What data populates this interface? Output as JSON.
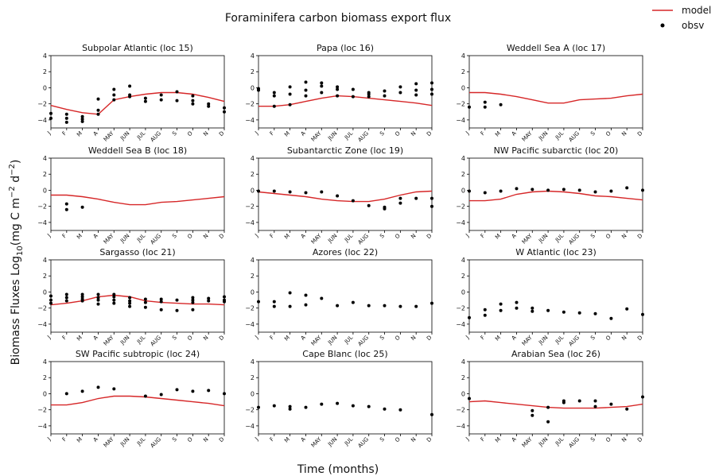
{
  "figure": {
    "title": "Foraminifera carbon biomass export flux",
    "xlabel": "Time (months)",
    "ylabel_main": "Biomass Fluxes Log",
    "ylabel_sub": "10",
    "ylabel_unit_open": "(mg C m",
    "ylabel_exp1": "−2",
    "ylabel_mid": " d",
    "ylabel_exp2": "−2",
    "ylabel_close": ")",
    "legend": {
      "model_label": "model",
      "obs_label": "obsv",
      "placement": "top-right"
    },
    "colors": {
      "model": "#d62728",
      "obs": "#000000"
    }
  },
  "chart_data": [
    {
      "type": "line",
      "title": "Subpolar Atlantic (loc 15)",
      "ylim": [
        -5,
        4
      ],
      "x_ticks": [
        "J",
        "F",
        "M",
        "A",
        "MAY",
        "JUN",
        "JUL",
        "AUG",
        "S",
        "O",
        "N",
        "D"
      ],
      "y_ticks": [
        "4",
        "2",
        "0",
        "−2",
        "−4"
      ],
      "model": [
        -2.2,
        -2.7,
        -3.1,
        -3.3,
        -1.5,
        -1.1,
        -0.8,
        -0.6,
        -0.6,
        -0.8,
        -1.2,
        -1.7
      ],
      "obs": [
        [
          1,
          -3.2
        ],
        [
          1,
          -3.8
        ],
        [
          2,
          -3.3
        ],
        [
          2,
          -3.8
        ],
        [
          2,
          -4.3
        ],
        [
          3,
          -3.6
        ],
        [
          3,
          -3.9
        ],
        [
          3,
          -4.2
        ],
        [
          4,
          -1.4
        ],
        [
          4,
          -2.8
        ],
        [
          4,
          -3.3
        ],
        [
          5,
          -0.2
        ],
        [
          5,
          -0.9
        ],
        [
          5,
          -1.5
        ],
        [
          6,
          0.2
        ],
        [
          6,
          -0.9
        ],
        [
          6,
          -1.1
        ],
        [
          7,
          -1.3
        ],
        [
          7,
          -1.7
        ],
        [
          8,
          -0.9
        ],
        [
          8,
          -1.5
        ],
        [
          9,
          -0.5
        ],
        [
          9,
          -1.6
        ],
        [
          10,
          -1.0
        ],
        [
          10,
          -1.6
        ],
        [
          10,
          -2.0
        ],
        [
          11,
          -2.0
        ],
        [
          11,
          -2.3
        ],
        [
          12,
          -2.5
        ],
        [
          12,
          -3.0
        ]
      ]
    },
    {
      "type": "line",
      "title": "Papa (loc 16)",
      "ylim": [
        -5,
        4
      ],
      "x_ticks": [
        "J",
        "F",
        "M",
        "A",
        "MAY",
        "JUN",
        "JUL",
        "AUG",
        "S",
        "O",
        "N",
        "D"
      ],
      "y_ticks": [
        "4",
        "2",
        "0",
        "−2",
        "−4"
      ],
      "model": [
        -2.3,
        -2.3,
        -2.1,
        -1.7,
        -1.3,
        -1.0,
        -1.1,
        -1.3,
        -1.5,
        -1.7,
        -1.9,
        -2.2
      ],
      "obs": [
        [
          1,
          -0.1
        ],
        [
          1,
          -0.3
        ],
        [
          2,
          -0.6
        ],
        [
          2,
          -1.0
        ],
        [
          2,
          -2.3
        ],
        [
          3,
          0.1
        ],
        [
          3,
          -0.8
        ],
        [
          3,
          -2.1
        ],
        [
          4,
          0.7
        ],
        [
          4,
          -0.3
        ],
        [
          4,
          -1.0
        ],
        [
          5,
          0.6
        ],
        [
          5,
          0.2
        ],
        [
          5,
          -0.6
        ],
        [
          6,
          0.1
        ],
        [
          6,
          -0.2
        ],
        [
          6,
          -1.0
        ],
        [
          7,
          -0.2
        ],
        [
          7,
          -1.1
        ],
        [
          8,
          -0.6
        ],
        [
          8,
          -0.8
        ],
        [
          8,
          -1.1
        ],
        [
          9,
          -0.4
        ],
        [
          9,
          -1.0
        ],
        [
          10,
          0.1
        ],
        [
          10,
          -0.6
        ],
        [
          11,
          0.5
        ],
        [
          11,
          -0.3
        ],
        [
          11,
          -0.9
        ],
        [
          12,
          0.6
        ],
        [
          12,
          -0.2
        ],
        [
          12,
          -0.8
        ]
      ]
    },
    {
      "type": "line",
      "title": "Weddell Sea A (loc 17)",
      "ylim": [
        -5,
        4
      ],
      "x_ticks": [
        "J",
        "F",
        "M",
        "A",
        "MAY",
        "JUN",
        "JUL",
        "AUG",
        "S",
        "O",
        "N",
        "D"
      ],
      "y_ticks": [
        "4",
        "2",
        "0",
        "−2",
        "−4"
      ],
      "model": [
        -0.6,
        -0.6,
        -0.8,
        -1.1,
        -1.5,
        -1.9,
        -1.9,
        -1.5,
        -1.4,
        -1.3,
        -1.0,
        -0.8
      ],
      "obs": [
        [
          1,
          -2.4
        ],
        [
          2,
          -1.8
        ],
        [
          2,
          -2.4
        ],
        [
          3,
          -2.1
        ]
      ]
    },
    {
      "type": "line",
      "title": "Weddell Sea B (loc 18)",
      "ylim": [
        -5,
        4
      ],
      "x_ticks": [
        "J",
        "F",
        "M",
        "A",
        "MAY",
        "JUN",
        "JUL",
        "AUG",
        "S",
        "O",
        "N",
        "D"
      ],
      "y_ticks": [
        "4",
        "2",
        "0",
        "−2",
        "−4"
      ],
      "model": [
        -0.6,
        -0.6,
        -0.8,
        -1.1,
        -1.5,
        -1.8,
        -1.8,
        -1.5,
        -1.4,
        -1.2,
        -1.0,
        -0.8
      ],
      "obs": [
        [
          2,
          -1.7
        ],
        [
          2,
          -2.4
        ],
        [
          3,
          -2.1
        ]
      ]
    },
    {
      "type": "line",
      "title": "Subantarctic Zone (loc 19)",
      "ylim": [
        -5,
        4
      ],
      "x_ticks": [
        "J",
        "F",
        "M",
        "A",
        "MAY",
        "JUN",
        "JUL",
        "AUG",
        "S",
        "O",
        "N",
        "D"
      ],
      "y_ticks": [
        "4",
        "2",
        "0",
        "−2",
        "−4"
      ],
      "model": [
        -0.2,
        -0.4,
        -0.6,
        -0.8,
        -1.1,
        -1.3,
        -1.4,
        -1.4,
        -1.1,
        -0.6,
        -0.2,
        -0.1
      ],
      "obs": [
        [
          1,
          -0.1
        ],
        [
          2,
          -0.1
        ],
        [
          3,
          -0.2
        ],
        [
          4,
          -0.3
        ],
        [
          5,
          -0.2
        ],
        [
          6,
          -0.7
        ],
        [
          7,
          -1.3
        ],
        [
          8,
          -1.9
        ],
        [
          9,
          -2.1
        ],
        [
          9,
          -2.3
        ],
        [
          10,
          -1.0
        ],
        [
          10,
          -1.6
        ],
        [
          11,
          -1.0
        ],
        [
          12,
          -1.0
        ],
        [
          12,
          -2.0
        ]
      ]
    },
    {
      "type": "line",
      "title": "NW Pacific subarctic (loc 20)",
      "ylim": [
        -5,
        4
      ],
      "x_ticks": [
        "J",
        "F",
        "M",
        "A",
        "MAY",
        "JUN",
        "JUL",
        "AUG",
        "S",
        "O",
        "N",
        "D"
      ],
      "y_ticks": [
        "4",
        "2",
        "0",
        "−2",
        "−4"
      ],
      "model": [
        -1.3,
        -1.3,
        -1.1,
        -0.5,
        -0.2,
        -0.1,
        -0.2,
        -0.4,
        -0.7,
        -0.8,
        -1.0,
        -1.2
      ],
      "obs": [
        [
          1,
          -0.1
        ],
        [
          2,
          -0.3
        ],
        [
          3,
          -0.1
        ],
        [
          4,
          0.2
        ],
        [
          5,
          0.1
        ],
        [
          6,
          0.0
        ],
        [
          7,
          0.1
        ],
        [
          8,
          0.0
        ],
        [
          9,
          -0.2
        ],
        [
          10,
          -0.1
        ],
        [
          11,
          0.3
        ],
        [
          12,
          0.0
        ]
      ]
    },
    {
      "type": "line",
      "title": "Sargasso (loc 21)",
      "ylim": [
        -5,
        4
      ],
      "x_ticks": [
        "J",
        "F",
        "M",
        "A",
        "MAY",
        "JUN",
        "JUL",
        "AUG",
        "S",
        "O",
        "N",
        "D"
      ],
      "y_ticks": [
        "4",
        "2",
        "0",
        "−2",
        "−4"
      ],
      "model": [
        -1.6,
        -1.4,
        -1.1,
        -0.6,
        -0.4,
        -0.6,
        -1.1,
        -1.3,
        -1.4,
        -1.5,
        -1.5,
        -1.6
      ],
      "obs": [
        [
          1,
          -0.5
        ],
        [
          1,
          -1.0
        ],
        [
          1,
          -1.4
        ],
        [
          2,
          -0.3
        ],
        [
          2,
          -0.7
        ],
        [
          2,
          -1.1
        ],
        [
          3,
          -0.3
        ],
        [
          3,
          -0.6
        ],
        [
          3,
          -0.9
        ],
        [
          3,
          -1.1
        ],
        [
          4,
          -0.3
        ],
        [
          4,
          -0.7
        ],
        [
          4,
          -1.0
        ],
        [
          4,
          -1.5
        ],
        [
          5,
          -0.3
        ],
        [
          5,
          -0.6
        ],
        [
          5,
          -1.0
        ],
        [
          5,
          -1.4
        ],
        [
          6,
          -0.7
        ],
        [
          6,
          -1.1
        ],
        [
          6,
          -1.4
        ],
        [
          6,
          -1.8
        ],
        [
          7,
          -0.9
        ],
        [
          7,
          -1.3
        ],
        [
          7,
          -1.9
        ],
        [
          8,
          -0.9
        ],
        [
          8,
          -1.2
        ],
        [
          8,
          -2.2
        ],
        [
          9,
          -1.0
        ],
        [
          9,
          -2.3
        ],
        [
          10,
          -0.7
        ],
        [
          10,
          -1.0
        ],
        [
          10,
          -1.3
        ],
        [
          10,
          -2.2
        ],
        [
          11,
          -0.8
        ],
        [
          11,
          -1.1
        ],
        [
          12,
          -0.6
        ],
        [
          12,
          -1.0
        ],
        [
          12,
          -1.2
        ]
      ]
    },
    {
      "type": "scatter",
      "title": "Azores (loc 22)",
      "ylim": [
        -5,
        4
      ],
      "x_ticks": [
        "J",
        "F",
        "M",
        "A",
        "MAY",
        "JUN",
        "JUL",
        "AUG",
        "S",
        "O",
        "N",
        "D"
      ],
      "y_ticks": [
        "4",
        "2",
        "0",
        "−2",
        "−4"
      ],
      "model": [],
      "obs": [
        [
          1,
          -1.2
        ],
        [
          2,
          -1.2
        ],
        [
          2,
          -1.8
        ],
        [
          3,
          -0.1
        ],
        [
          3,
          -1.8
        ],
        [
          4,
          -0.4
        ],
        [
          4,
          -1.6
        ],
        [
          5,
          -0.8
        ],
        [
          6,
          -1.7
        ],
        [
          7,
          -1.3
        ],
        [
          8,
          -1.7
        ],
        [
          9,
          -1.7
        ],
        [
          10,
          -1.8
        ],
        [
          11,
          -1.8
        ],
        [
          12,
          -1.4
        ]
      ]
    },
    {
      "type": "scatter",
      "title": "W Atlantic (loc 23)",
      "ylim": [
        -5,
        4
      ],
      "x_ticks": [
        "J",
        "F",
        "M",
        "A",
        "MAY",
        "JUN",
        "JUL",
        "AUG",
        "S",
        "O",
        "N",
        "D"
      ],
      "y_ticks": [
        "4",
        "2",
        "0",
        "−2",
        "−4"
      ],
      "model": [],
      "obs": [
        [
          1,
          -3.2
        ],
        [
          2,
          -2.2
        ],
        [
          2,
          -2.9
        ],
        [
          3,
          -1.5
        ],
        [
          3,
          -2.3
        ],
        [
          4,
          -1.3
        ],
        [
          4,
          -2.0
        ],
        [
          5,
          -2.0
        ],
        [
          5,
          -2.4
        ],
        [
          6,
          -2.3
        ],
        [
          7,
          -2.5
        ],
        [
          8,
          -2.6
        ],
        [
          9,
          -2.7
        ],
        [
          10,
          -3.3
        ],
        [
          11,
          -2.1
        ],
        [
          12,
          -2.8
        ]
      ]
    },
    {
      "type": "line",
      "title": "SW Pacific subtropic (loc 24)",
      "ylim": [
        -5,
        4
      ],
      "x_ticks": [
        "J",
        "F",
        "M",
        "A",
        "MAY",
        "JUN",
        "JUL",
        "AUG",
        "S",
        "O",
        "N",
        "D"
      ],
      "y_ticks": [
        "4",
        "2",
        "0",
        "−2",
        "−4"
      ],
      "model": [
        -1.4,
        -1.4,
        -1.1,
        -0.6,
        -0.3,
        -0.3,
        -0.4,
        -0.6,
        -0.8,
        -1.0,
        -1.2,
        -1.5
      ],
      "obs": [
        [
          2,
          0.0
        ],
        [
          3,
          0.3
        ],
        [
          4,
          0.8
        ],
        [
          5,
          0.6
        ],
        [
          7,
          -0.3
        ],
        [
          8,
          -0.1
        ],
        [
          9,
          0.5
        ],
        [
          10,
          0.3
        ],
        [
          11,
          0.4
        ],
        [
          12,
          0.0
        ]
      ]
    },
    {
      "type": "scatter",
      "title": "Cape Blanc (loc 25)",
      "ylim": [
        -5,
        4
      ],
      "x_ticks": [
        "J",
        "F",
        "M",
        "A",
        "MAY",
        "JUN",
        "JUL",
        "AUG",
        "S",
        "O",
        "N",
        "D"
      ],
      "y_ticks": [
        "4",
        "2",
        "0",
        "−2",
        "−4"
      ],
      "model": [],
      "obs": [
        [
          1,
          -1.7
        ],
        [
          2,
          -1.5
        ],
        [
          3,
          -1.6
        ],
        [
          3,
          -1.9
        ],
        [
          4,
          -1.7
        ],
        [
          5,
          -1.3
        ],
        [
          6,
          -1.2
        ],
        [
          7,
          -1.5
        ],
        [
          8,
          -1.6
        ],
        [
          9,
          -1.9
        ],
        [
          10,
          -2.0
        ],
        [
          12,
          -2.6
        ]
      ]
    },
    {
      "type": "line",
      "title": "Arabian Sea (loc 26)",
      "ylim": [
        -5,
        4
      ],
      "x_ticks": [
        "J",
        "F",
        "M",
        "A",
        "MAY",
        "JUN",
        "JUL",
        "AUG",
        "S",
        "O",
        "N",
        "D"
      ],
      "y_ticks": [
        "4",
        "2",
        "0",
        "−2",
        "−4"
      ],
      "model": [
        -1.0,
        -0.9,
        -1.1,
        -1.3,
        -1.5,
        -1.7,
        -1.8,
        -1.8,
        -1.8,
        -1.7,
        -1.6,
        -1.3
      ],
      "obs": [
        [
          1,
          -0.6
        ],
        [
          5,
          -2.1
        ],
        [
          5,
          -2.7
        ],
        [
          6,
          -1.7
        ],
        [
          6,
          -3.5
        ],
        [
          7,
          -0.9
        ],
        [
          7,
          -1.1
        ],
        [
          8,
          -0.9
        ],
        [
          9,
          -0.9
        ],
        [
          9,
          -1.6
        ],
        [
          10,
          -1.3
        ],
        [
          11,
          -1.9
        ],
        [
          12,
          -0.4
        ]
      ]
    }
  ]
}
